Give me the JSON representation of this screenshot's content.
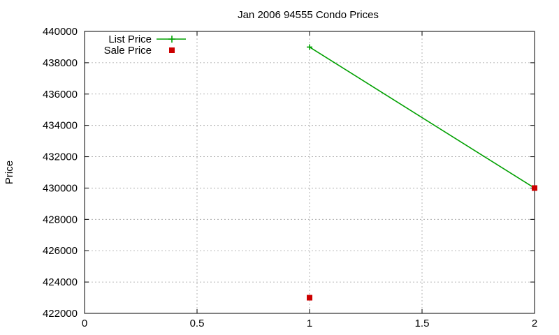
{
  "chart_data": {
    "type": "line",
    "title": "Jan 2006 94555 Condo Prices",
    "xlabel": "",
    "ylabel": "Price",
    "xlim": [
      0,
      2
    ],
    "ylim": [
      422000,
      440000
    ],
    "x_ticks": [
      0,
      0.5,
      1,
      1.5,
      2
    ],
    "x_tick_labels": [
      "0",
      "0.5",
      "1",
      "1.5",
      "2"
    ],
    "y_ticks": [
      422000,
      424000,
      426000,
      428000,
      430000,
      432000,
      434000,
      436000,
      438000,
      440000
    ],
    "y_tick_labels": [
      "422000",
      "424000",
      "426000",
      "428000",
      "430000",
      "432000",
      "434000",
      "436000",
      "438000",
      "440000"
    ],
    "grid": true,
    "legend_position": "top-left",
    "series": [
      {
        "name": "List Price",
        "style": "line-plus",
        "color": "#00a000",
        "x": [
          1,
          2
        ],
        "y": [
          439000,
          430000
        ]
      },
      {
        "name": "Sale Price",
        "style": "square-marker",
        "color": "#cc0000",
        "x": [
          1,
          2
        ],
        "y": [
          423000,
          430000
        ]
      }
    ]
  }
}
